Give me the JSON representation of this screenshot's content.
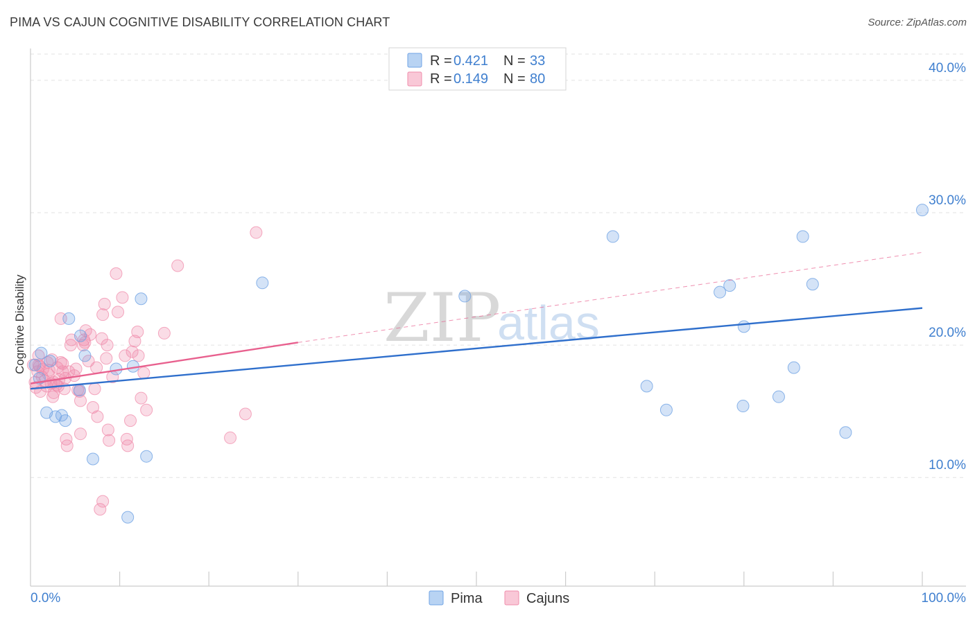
{
  "title": "PIMA VS CAJUN COGNITIVE DISABILITY CORRELATION CHART",
  "source": "Source: ZipAtlas.com",
  "watermark": {
    "zip": "ZIP",
    "atlas": "atlas"
  },
  "colors": {
    "pima": "#6fa3e4",
    "pima_line": "#2f6fcc",
    "cajun": "#f08cab",
    "cajun_line": "#e8608e",
    "label": "#3f7fcf"
  },
  "legend": {
    "pima": {
      "r_label": "R = ",
      "r_value": "0.421",
      "n_label": "N = ",
      "n_value": "33"
    },
    "cajun": {
      "r_label": "R = ",
      "r_value": "0.149",
      "n_label": "N = ",
      "n_value": "80"
    }
  },
  "chart_data": {
    "type": "scatter",
    "title": "PIMA VS CAJUN COGNITIVE DISABILITY CORRELATION CHART",
    "xlabel": "",
    "ylabel": "Cognitive Disability",
    "xlim": [
      0,
      100
    ],
    "ylim": [
      1.8,
      42.4
    ],
    "x_tick_labels": [
      "0.0%",
      "100.0%"
    ],
    "y_ticks": [
      10,
      20,
      30,
      40
    ],
    "y_tick_labels": [
      "10.0%",
      "20.0%",
      "30.0%",
      "40.0%"
    ],
    "series": [
      {
        "name": "Pima",
        "points": [
          [
            0.5,
            18.5
          ],
          [
            1.0,
            17.5
          ],
          [
            1.2,
            19.4
          ],
          [
            1.8,
            14.9
          ],
          [
            2.2,
            18.8
          ],
          [
            2.8,
            14.6
          ],
          [
            3.5,
            14.7
          ],
          [
            3.9,
            14.3
          ],
          [
            4.3,
            22.0
          ],
          [
            5.5,
            16.6
          ],
          [
            5.6,
            20.7
          ],
          [
            6.1,
            19.2
          ],
          [
            7.0,
            11.4
          ],
          [
            9.6,
            18.2
          ],
          [
            10.9,
            7.0
          ],
          [
            11.5,
            18.4
          ],
          [
            12.4,
            23.5
          ],
          [
            13.0,
            11.6
          ],
          [
            26.0,
            24.7
          ],
          [
            48.7,
            23.7
          ],
          [
            65.3,
            28.2
          ],
          [
            69.1,
            16.9
          ],
          [
            71.3,
            15.1
          ],
          [
            77.3,
            24.0
          ],
          [
            78.4,
            24.5
          ],
          [
            79.9,
            15.4
          ],
          [
            80.0,
            21.4
          ],
          [
            83.9,
            16.1
          ],
          [
            85.6,
            18.3
          ],
          [
            86.6,
            28.2
          ],
          [
            87.7,
            24.6
          ],
          [
            91.4,
            13.4
          ],
          [
            100.0,
            30.2
          ]
        ]
      },
      {
        "name": "Cajuns",
        "points": [
          [
            0.3,
            18.5
          ],
          [
            0.5,
            17.2
          ],
          [
            0.6,
            16.8
          ],
          [
            0.8,
            18.0
          ],
          [
            0.9,
            19.2
          ],
          [
            1.0,
            18.4
          ],
          [
            1.1,
            16.5
          ],
          [
            1.3,
            17.6
          ],
          [
            1.4,
            18.2
          ],
          [
            1.6,
            17.3
          ],
          [
            1.8,
            16.9
          ],
          [
            1.9,
            18.7
          ],
          [
            2.0,
            17.8
          ],
          [
            2.1,
            18.1
          ],
          [
            2.3,
            17.1
          ],
          [
            2.4,
            18.9
          ],
          [
            2.5,
            16.1
          ],
          [
            2.6,
            16.4
          ],
          [
            2.9,
            17.0
          ],
          [
            3.0,
            18.3
          ],
          [
            3.1,
            16.9
          ],
          [
            3.2,
            17.4
          ],
          [
            3.4,
            18.7
          ],
          [
            3.6,
            18.6
          ],
          [
            3.4,
            22.0
          ],
          [
            3.6,
            18.0
          ],
          [
            3.9,
            17.5
          ],
          [
            4.0,
            12.9
          ],
          [
            4.1,
            12.4
          ],
          [
            4.3,
            18.0
          ],
          [
            4.5,
            20.0
          ],
          [
            4.6,
            20.4
          ],
          [
            4.9,
            17.7
          ],
          [
            5.1,
            18.2
          ],
          [
            5.3,
            16.6
          ],
          [
            5.5,
            16.5
          ],
          [
            5.6,
            13.3
          ],
          [
            5.6,
            15.8
          ],
          [
            5.9,
            20.0
          ],
          [
            6.0,
            20.4
          ],
          [
            6.1,
            20.2
          ],
          [
            6.2,
            21.1
          ],
          [
            6.5,
            18.8
          ],
          [
            6.7,
            20.8
          ],
          [
            7.0,
            15.3
          ],
          [
            7.2,
            16.7
          ],
          [
            7.4,
            18.3
          ],
          [
            7.5,
            14.6
          ],
          [
            7.8,
            7.6
          ],
          [
            8.0,
            20.5
          ],
          [
            8.1,
            22.3
          ],
          [
            8.1,
            8.2
          ],
          [
            8.3,
            23.1
          ],
          [
            8.5,
            19.0
          ],
          [
            8.6,
            20.0
          ],
          [
            8.7,
            13.6
          ],
          [
            8.8,
            12.8
          ],
          [
            9.2,
            17.6
          ],
          [
            9.6,
            25.4
          ],
          [
            9.8,
            22.5
          ],
          [
            10.3,
            23.6
          ],
          [
            10.6,
            19.2
          ],
          [
            10.8,
            12.9
          ],
          [
            10.9,
            12.4
          ],
          [
            11.2,
            14.3
          ],
          [
            11.4,
            19.5
          ],
          [
            11.7,
            20.3
          ],
          [
            12.0,
            21.0
          ],
          [
            12.1,
            19.2
          ],
          [
            12.4,
            16.0
          ],
          [
            12.7,
            17.9
          ],
          [
            13.0,
            15.1
          ],
          [
            15.0,
            20.9
          ],
          [
            16.5,
            26.0
          ],
          [
            22.4,
            13.0
          ],
          [
            24.1,
            14.8
          ],
          [
            25.3,
            28.5
          ],
          [
            0.9,
            18.5
          ],
          [
            2.6,
            17.2
          ],
          [
            3.8,
            16.7
          ]
        ]
      }
    ],
    "trend_lines": [
      {
        "name": "Pima",
        "x": [
          0,
          100
        ],
        "y": [
          16.7,
          22.8
        ],
        "style": "solid"
      },
      {
        "name": "Cajuns",
        "x": [
          0,
          30
        ],
        "y": [
          17.1,
          20.2
        ],
        "style": "solid"
      },
      {
        "name": "Cajuns (extrapolated)",
        "x": [
          30,
          100
        ],
        "y": [
          20.2,
          27.0
        ],
        "style": "dashed"
      }
    ]
  }
}
